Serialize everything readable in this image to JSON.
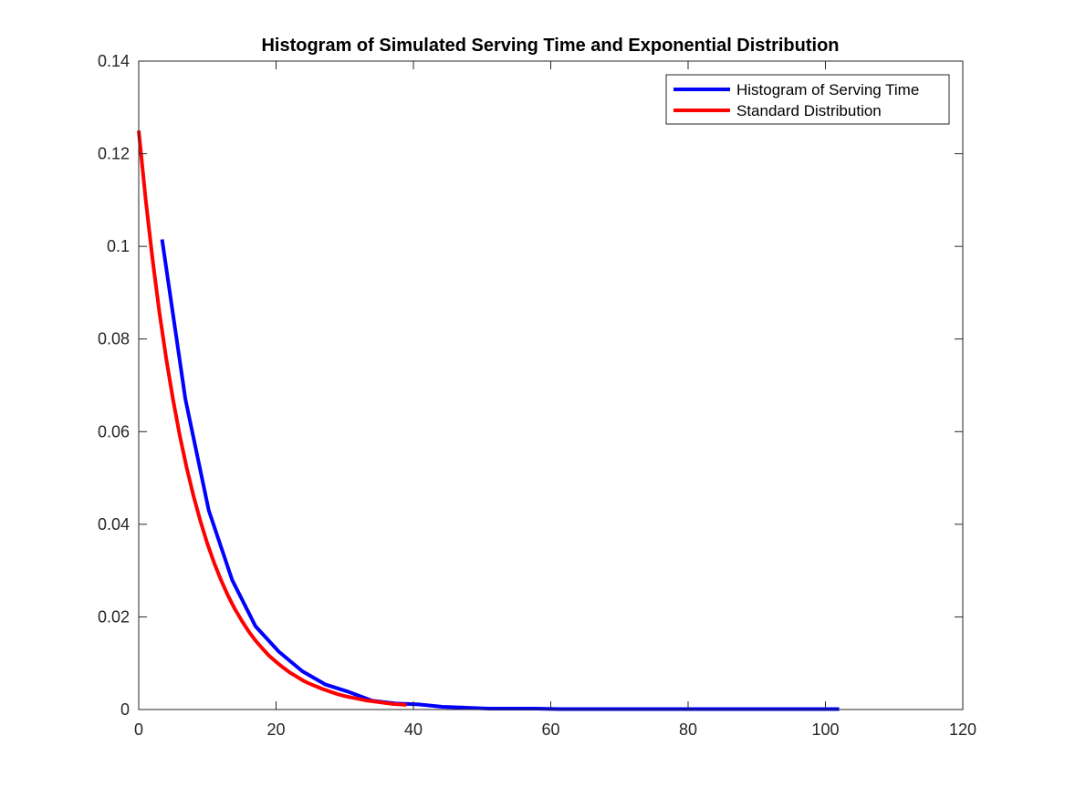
{
  "chart_data": {
    "type": "line",
    "title": "Histogram of Simulated Serving Time and Exponential Distribution",
    "xlabel": "",
    "ylabel": "",
    "xlim": [
      0,
      120
    ],
    "ylim": [
      0,
      0.14
    ],
    "x_ticks": [
      0,
      20,
      40,
      60,
      80,
      100,
      120
    ],
    "y_ticks": [
      0,
      0.02,
      0.04,
      0.06,
      0.08,
      0.1,
      0.12,
      0.14
    ],
    "x_tick_labels": [
      "0",
      "20",
      "40",
      "60",
      "80",
      "100",
      "120"
    ],
    "y_tick_labels": [
      "0",
      "0.02",
      "0.04",
      "0.06",
      "0.08",
      "0.1",
      "0.12",
      "0.14"
    ],
    "grid": false,
    "legend_position": "top-right",
    "series": [
      {
        "name": "Histogram of Serving Time",
        "color": "#0000ff",
        "x": [
          3.4,
          6.8,
          10.2,
          13.6,
          17.0,
          20.4,
          23.8,
          27.2,
          30.6,
          34.0,
          37.4,
          40.8,
          44.2,
          47.6,
          51.0,
          54.4,
          57.8,
          61.2,
          64.6,
          68.0,
          71.4,
          74.8,
          78.2,
          81.6,
          85.0,
          88.4,
          91.8,
          95.2,
          98.6,
          102.0
        ],
        "values": [
          0.1015,
          0.067,
          0.043,
          0.028,
          0.018,
          0.0125,
          0.0083,
          0.0054,
          0.0038,
          0.0019,
          0.0013,
          0.0011,
          0.0006,
          0.0004,
          0.0002,
          0.0002,
          0.0002,
          0.0001,
          0.0001,
          0.0001,
          0.0001,
          0.0001,
          0.0001,
          0.0001,
          0.0001,
          0.0001,
          0.0001,
          0.0001,
          0.0001,
          0.0001
        ]
      },
      {
        "name": "Standard Distribution",
        "color": "#ff0000",
        "x": [
          0,
          1,
          2,
          3,
          4,
          5,
          6,
          7,
          8,
          9,
          10,
          11,
          12,
          13,
          14,
          15,
          16,
          17,
          18,
          19,
          20,
          21,
          22,
          23,
          24,
          25,
          26,
          27,
          28,
          29,
          30,
          31,
          32,
          33,
          34,
          35,
          36,
          37,
          38,
          39
        ],
        "values": [
          0.125,
          0.1103,
          0.0974,
          0.0859,
          0.0758,
          0.0669,
          0.059,
          0.0521,
          0.046,
          0.0406,
          0.0358,
          0.0316,
          0.0279,
          0.0246,
          0.0217,
          0.0192,
          0.0169,
          0.0149,
          0.0132,
          0.0116,
          0.0103,
          0.0091,
          0.008,
          0.0071,
          0.0062,
          0.0055,
          0.0049,
          0.0043,
          0.0038,
          0.0033,
          0.0029,
          0.0026,
          0.0023,
          0.002,
          0.0018,
          0.0016,
          0.0014,
          0.0012,
          0.0011,
          0.001
        ]
      }
    ]
  }
}
